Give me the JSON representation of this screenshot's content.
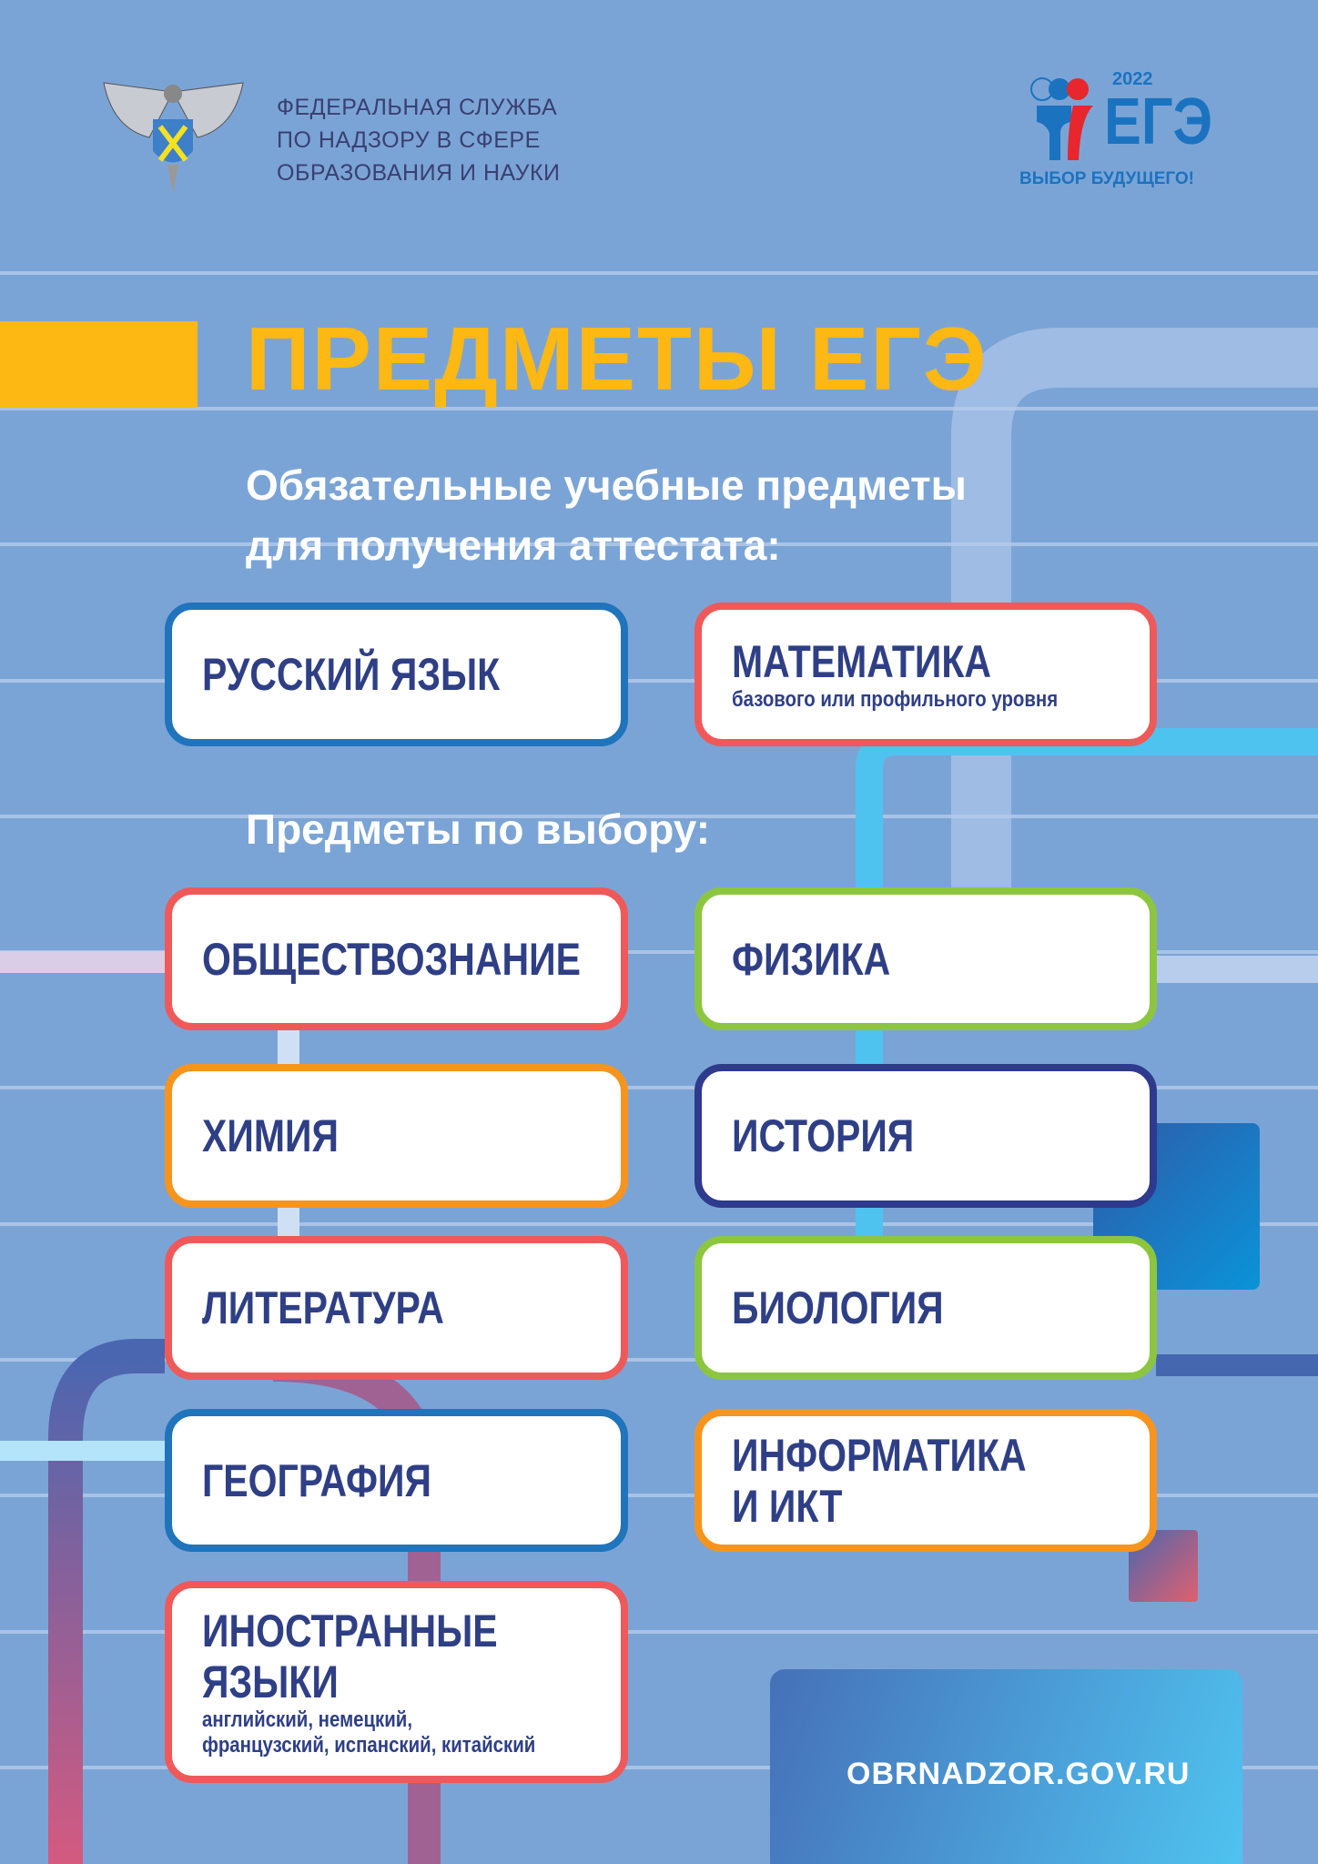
{
  "header": {
    "org_lines": [
      "ФЕДЕРАЛЬНАЯ СЛУЖБА",
      "ПО НАДЗОРУ В СФЕРЕ",
      "ОБРАЗОВАНИЯ И НАУКИ"
    ],
    "emblem_icon": "double-headed-eagle-emblem",
    "ege_logo": {
      "year": "2022",
      "word": "ЕГЭ",
      "slogan": "ВЫБОР БУДУЩЕГО!"
    }
  },
  "title": "ПРЕДМЕТЫ ЕГЭ",
  "mandatory": {
    "heading_lines": [
      "Обязательные учебные предметы",
      "для получения аттестата:"
    ],
    "subjects": [
      {
        "name": "РУССКИЙ ЯЗЫК",
        "color": "#1f74bb"
      },
      {
        "name": "МАТЕМАТИКА",
        "note": "базового или профильного уровня",
        "color": "#ef5959"
      }
    ]
  },
  "elective": {
    "heading": "Предметы по выбору:",
    "subjects": [
      {
        "name": "ОБЩЕСТВОЗНАНИЕ",
        "color": "#ef5959"
      },
      {
        "name": "ФИЗИКА",
        "color": "#8cc63f"
      },
      {
        "name": "ХИМИЯ",
        "color": "#f7941d"
      },
      {
        "name": "ИСТОРИЯ",
        "color": "#2e3a8c"
      },
      {
        "name": "ЛИТЕРАТУРА",
        "color": "#ef5959"
      },
      {
        "name": "БИОЛОГИЯ",
        "color": "#8cc63f"
      },
      {
        "name": "ГЕОГРАФИЯ",
        "color": "#1f74bb"
      },
      {
        "name_lines": [
          "ИНФОРМАТИКА",
          "И ИКТ"
        ],
        "color": "#f7941d"
      },
      {
        "name_lines": [
          "ИНОСТРАННЫЕ",
          "ЯЗЫКИ"
        ],
        "note_lines": [
          "английский, немецкий,",
          "французский, испанский, китайский"
        ],
        "color": "#ef5959"
      }
    ]
  },
  "footer": {
    "url": "OBRNADZOR.GOV.RU"
  }
}
